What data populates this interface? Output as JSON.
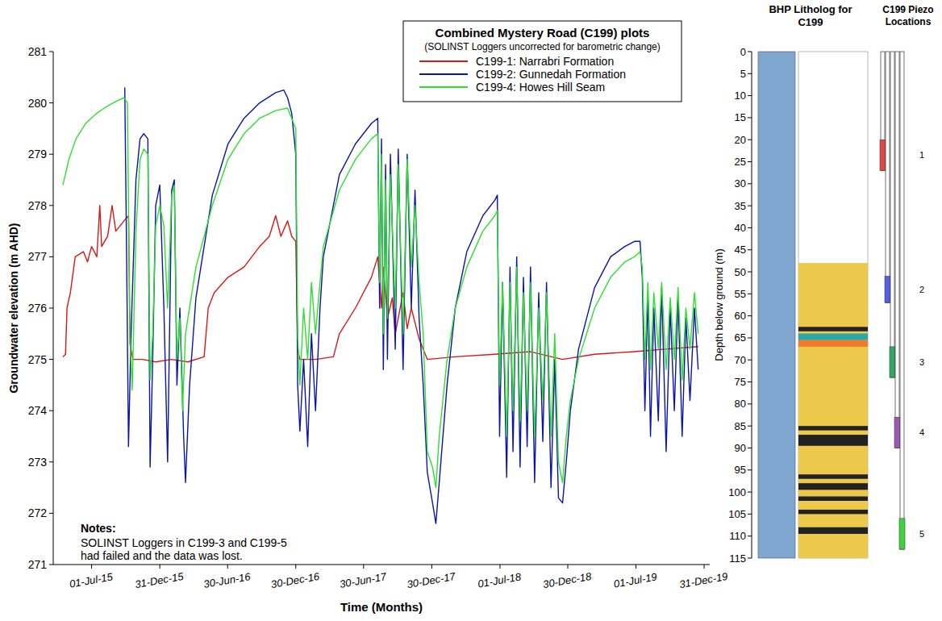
{
  "chart_data": [
    {
      "type": "line",
      "title": "Combined Mystery Road (C199) plots",
      "subtitle": "(SOLINST Loggers uncorrected for barometric change)",
      "x_label": "Time (Months)",
      "y_label": "Groundwater elevation (m AHD)",
      "notes": {
        "heading": "Notes:",
        "lines": [
          "SOLINST Loggers in C199-3 and C199-5",
          "had failed and the data was lost."
        ]
      },
      "xlim": [
        "2015-03-20",
        "2020-01-15"
      ],
      "xticks": [
        {
          "value": "2015-07-01",
          "label": "01-Jul-15"
        },
        {
          "value": "2015-12-31",
          "label": "31-Dec-15"
        },
        {
          "value": "2016-06-30",
          "label": "30-Jun-16"
        },
        {
          "value": "2016-12-30",
          "label": "30-Dec-16"
        },
        {
          "value": "2017-06-30",
          "label": "30-Jun-17"
        },
        {
          "value": "2017-12-30",
          "label": "30-Dec-17"
        },
        {
          "value": "2018-07-01",
          "label": "01-Jul-18"
        },
        {
          "value": "2018-12-30",
          "label": "30-Dec-18"
        },
        {
          "value": "2019-07-01",
          "label": "01-Jul-19"
        },
        {
          "value": "2019-12-31",
          "label": "31-Dec-19"
        }
      ],
      "ylim": [
        271,
        281
      ],
      "yticks": [
        271,
        272,
        273,
        274,
        275,
        276,
        277,
        278,
        279,
        280,
        281
      ],
      "grid": false,
      "legend": "top-right",
      "series": [
        {
          "name": "C199-1: Narrabri Formation",
          "color": "#d81818",
          "x": [
            "2015-04-15",
            "2015-04-22",
            "2015-04-26",
            "2015-05-05",
            "2015-05-18",
            "2015-06-09",
            "2015-06-20",
            "2015-07-01",
            "2015-07-15",
            "2015-07-23",
            "2015-07-28",
            "2015-08-13",
            "2015-08-25",
            "2015-09-04",
            "2015-09-26",
            "2015-10-08",
            "2015-10-12",
            "2015-10-20",
            "2015-11-15",
            "2015-12-20",
            "2016-02-01",
            "2016-03-15",
            "2016-04-28",
            "2016-05-09",
            "2016-05-25",
            "2016-07-01",
            "2016-08-13",
            "2016-09-24",
            "2016-10-20",
            "2016-11-06",
            "2016-11-20",
            "2016-12-08",
            "2016-12-19",
            "2016-12-30",
            "2017-01-04",
            "2017-01-10",
            "2017-02-21",
            "2017-04-10",
            "2017-04-26",
            "2017-06-08",
            "2017-07-21",
            "2017-08-07",
            "2017-08-17",
            "2017-08-22",
            "2017-09-02",
            "2017-09-15",
            "2017-09-23",
            "2017-10-14",
            "2017-10-25",
            "2017-11-05",
            "2017-11-26",
            "2017-12-18",
            "2018-03-03",
            "2018-06-17",
            "2018-09-21",
            "2018-12-16",
            "2019-03-12",
            "2019-06-27",
            "2019-09-20",
            "2019-12-15"
          ],
          "values": [
            275.05,
            275.1,
            276.0,
            276.3,
            277.0,
            277.1,
            276.9,
            277.2,
            277.0,
            278.0,
            277.2,
            277.4,
            278.0,
            277.5,
            277.7,
            277.8,
            275.3,
            275.0,
            275.0,
            274.95,
            275.0,
            274.95,
            275.05,
            276.0,
            276.3,
            276.6,
            276.8,
            277.2,
            277.4,
            277.8,
            277.4,
            277.7,
            277.4,
            277.3,
            275.2,
            275.0,
            275.0,
            275.05,
            275.5,
            276.0,
            276.6,
            277.0,
            276.0,
            276.8,
            275.8,
            276.2,
            275.5,
            276.3,
            275.6,
            276.0,
            275.4,
            275.0,
            275.05,
            275.1,
            275.15,
            275.0,
            275.1,
            275.15,
            275.2,
            275.25
          ]
        },
        {
          "name": "C199-2: Gunnedah Formation",
          "color": "#0a14a8",
          "x": [
            "2015-09-28",
            "2015-10-03",
            "2015-10-08",
            "2015-10-15",
            "2015-10-28",
            "2015-11-08",
            "2015-11-18",
            "2015-11-29",
            "2015-12-05",
            "2015-12-12",
            "2015-12-20",
            "2015-12-31",
            "2016-01-11",
            "2016-01-21",
            "2016-02-01",
            "2016-02-08",
            "2016-02-15",
            "2016-02-23",
            "2016-03-04",
            "2016-03-09",
            "2016-03-20",
            "2016-04-06",
            "2016-05-20",
            "2016-07-01",
            "2016-08-13",
            "2016-09-24",
            "2016-11-06",
            "2016-11-28",
            "2016-12-08",
            "2016-12-19",
            "2016-12-30",
            "2017-01-04",
            "2017-01-10",
            "2017-01-20",
            "2017-01-31",
            "2017-02-10",
            "2017-02-21",
            "2017-03-05",
            "2017-03-14",
            "2017-04-26",
            "2017-06-08",
            "2017-07-21",
            "2017-08-07",
            "2017-08-12",
            "2017-08-17",
            "2017-08-22",
            "2017-08-28",
            "2017-09-02",
            "2017-09-10",
            "2017-09-23",
            "2017-10-01",
            "2017-10-14",
            "2017-10-25",
            "2017-11-05",
            "2017-11-15",
            "2017-11-26",
            "2017-12-07",
            "2017-12-18",
            "2018-01-01",
            "2018-01-10",
            "2018-01-19",
            "2018-02-09",
            "2018-03-03",
            "2018-04-03",
            "2018-05-16",
            "2018-06-17",
            "2018-06-24",
            "2018-06-30",
            "2018-07-08",
            "2018-07-19",
            "2018-07-28",
            "2018-08-05",
            "2018-08-15",
            "2018-08-24",
            "2018-09-02",
            "2018-09-12",
            "2018-09-21",
            "2018-10-02",
            "2018-10-13",
            "2018-10-24",
            "2018-11-03",
            "2018-11-15",
            "2018-11-25",
            "2018-12-05",
            "2018-12-16",
            "2018-12-26",
            "2019-01-06",
            "2019-01-28",
            "2019-03-12",
            "2019-04-24",
            "2019-06-01",
            "2019-06-27",
            "2019-07-12",
            "2019-07-18",
            "2019-07-25",
            "2019-08-02",
            "2019-08-09",
            "2019-08-18",
            "2019-08-30",
            "2019-09-08",
            "2019-09-20",
            "2019-10-01",
            "2019-10-12",
            "2019-10-22",
            "2019-11-02",
            "2019-11-12",
            "2019-11-23",
            "2019-12-05",
            "2019-12-15"
          ],
          "values": [
            280.3,
            277.0,
            273.3,
            275.5,
            278.5,
            279.3,
            279.4,
            279.3,
            272.9,
            275.0,
            278.0,
            278.4,
            276.0,
            273.0,
            278.3,
            278.5,
            274.5,
            276.0,
            273.5,
            272.6,
            274.5,
            276.2,
            278.2,
            279.2,
            279.7,
            280.0,
            280.2,
            280.25,
            280.1,
            279.8,
            279.0,
            274.5,
            273.6,
            275.0,
            273.3,
            275.5,
            274.0,
            276.0,
            277.0,
            278.6,
            279.2,
            279.6,
            279.7,
            276.0,
            279.3,
            274.8,
            278.8,
            275.0,
            279.0,
            275.2,
            279.1,
            274.8,
            279.0,
            276.0,
            278.3,
            275.8,
            274.5,
            272.8,
            272.2,
            271.8,
            272.6,
            274.5,
            276.0,
            277.1,
            277.8,
            278.1,
            278.2,
            273.5,
            276.5,
            272.7,
            276.8,
            273.2,
            277.0,
            272.9,
            276.6,
            273.3,
            276.8,
            272.6,
            276.3,
            273.4,
            276.5,
            272.5,
            275.0,
            272.3,
            272.2,
            273.0,
            274.0,
            275.2,
            276.4,
            277.0,
            277.2,
            277.3,
            277.3,
            276.6,
            274.0,
            276.3,
            273.5,
            276.0,
            273.8,
            276.4,
            273.2,
            276.0,
            274.0,
            276.2,
            273.5,
            275.8,
            274.2,
            276.0,
            274.8
          ]
        },
        {
          "name": "C199-4: Howes Hill Seam",
          "color": "#2ee02e",
          "x": [
            "2015-04-15",
            "2015-05-01",
            "2015-05-20",
            "2015-06-15",
            "2015-07-15",
            "2015-08-15",
            "2015-09-10",
            "2015-09-26",
            "2015-10-05",
            "2015-10-12",
            "2015-10-18",
            "2015-10-28",
            "2015-11-08",
            "2015-11-18",
            "2015-11-29",
            "2015-12-05",
            "2015-12-12",
            "2015-12-20",
            "2015-12-31",
            "2016-01-11",
            "2016-01-21",
            "2016-02-01",
            "2016-02-08",
            "2016-02-15",
            "2016-02-23",
            "2016-03-01",
            "2016-03-09",
            "2016-04-06",
            "2016-05-20",
            "2016-07-01",
            "2016-08-13",
            "2016-09-24",
            "2016-11-06",
            "2016-12-08",
            "2016-12-19",
            "2016-12-30",
            "2017-01-04",
            "2017-01-10",
            "2017-01-20",
            "2017-01-31",
            "2017-02-10",
            "2017-02-21",
            "2017-03-05",
            "2017-03-14",
            "2017-04-26",
            "2017-06-08",
            "2017-07-21",
            "2017-08-07",
            "2017-08-12",
            "2017-08-17",
            "2017-08-22",
            "2017-08-28",
            "2017-09-02",
            "2017-09-10",
            "2017-09-23",
            "2017-10-01",
            "2017-10-14",
            "2017-10-25",
            "2017-11-05",
            "2017-11-15",
            "2017-11-26",
            "2017-12-07",
            "2017-12-18",
            "2018-01-01",
            "2018-01-10",
            "2018-01-19",
            "2018-02-09",
            "2018-03-03",
            "2018-04-03",
            "2018-05-16",
            "2018-06-17",
            "2018-06-24",
            "2018-06-30",
            "2018-07-08",
            "2018-07-19",
            "2018-07-28",
            "2018-08-05",
            "2018-08-15",
            "2018-08-24",
            "2018-09-02",
            "2018-09-12",
            "2018-09-21",
            "2018-10-02",
            "2018-10-13",
            "2018-10-24",
            "2018-11-03",
            "2018-11-15",
            "2018-11-25",
            "2018-12-05",
            "2018-12-16",
            "2018-12-26",
            "2019-01-06",
            "2019-01-28",
            "2019-03-12",
            "2019-04-24",
            "2019-06-01",
            "2019-06-27",
            "2019-07-12",
            "2019-07-18",
            "2019-07-25",
            "2019-08-02",
            "2019-08-09",
            "2019-08-18",
            "2019-08-30",
            "2019-09-08",
            "2019-09-20",
            "2019-10-01",
            "2019-10-12",
            "2019-10-22",
            "2019-11-02",
            "2019-11-12",
            "2019-11-23",
            "2019-12-05",
            "2019-12-15"
          ],
          "values": [
            278.4,
            278.9,
            279.3,
            279.6,
            279.8,
            279.95,
            280.05,
            280.1,
            280.0,
            275.5,
            274.4,
            277.5,
            278.9,
            279.1,
            279.0,
            274.6,
            275.5,
            277.6,
            278.0,
            277.6,
            276.0,
            278.2,
            278.4,
            275.0,
            275.8,
            274.0,
            275.5,
            276.8,
            278.0,
            278.9,
            279.4,
            279.7,
            279.85,
            279.9,
            279.7,
            279.5,
            275.5,
            274.5,
            276.0,
            275.0,
            276.5,
            275.5,
            276.5,
            277.2,
            278.3,
            278.9,
            279.3,
            279.4,
            276.5,
            279.0,
            275.5,
            278.5,
            275.8,
            278.6,
            276.0,
            278.8,
            275.5,
            278.9,
            276.8,
            278.0,
            276.5,
            275.5,
            273.2,
            272.9,
            272.5,
            273.5,
            275.0,
            276.0,
            276.8,
            277.5,
            277.8,
            277.9,
            274.5,
            276.5,
            273.5,
            276.5,
            274.0,
            276.8,
            273.8,
            276.3,
            274.0,
            276.5,
            273.5,
            276.0,
            274.2,
            276.3,
            273.5,
            275.5,
            273.0,
            272.6,
            273.5,
            274.2,
            275.0,
            276.0,
            276.6,
            276.9,
            277.0,
            277.1,
            276.8,
            275.0,
            276.5,
            274.8,
            276.3,
            275.2,
            276.5,
            274.8,
            276.2,
            275.0,
            276.4,
            274.6,
            276.0,
            275.2,
            276.3,
            275.5
          ]
        }
      ]
    },
    {
      "type": "litholog",
      "title": "BHP Litholog for C199",
      "piezo_title": "C199 Piezo Locations",
      "y_label": "Depth below ground (m)",
      "ylim": [
        0,
        115
      ],
      "yticks": [
        0,
        5,
        10,
        15,
        20,
        25,
        30,
        35,
        40,
        45,
        50,
        55,
        60,
        65,
        70,
        75,
        80,
        85,
        90,
        95,
        100,
        105,
        110,
        115
      ],
      "lithology": {
        "top": [
          48,
          62.5,
          64,
          65.5,
          85,
          87,
          96,
          98,
          101,
          104,
          108
        ],
        "bottom": [
          115,
          63.5,
          65.5,
          67,
          86,
          89.5,
          97,
          99.5,
          102,
          105,
          109.5
        ],
        "colors": [
          "#ecc94a",
          "#222222",
          "#2aa8a8",
          "#f07a30",
          "#222222",
          "#222222",
          "#222222",
          "#222222",
          "#222222",
          "#222222",
          "#222222"
        ]
      },
      "piezometers": {
        "labels": [
          "1",
          "2",
          "3",
          "4",
          "5"
        ],
        "top": [
          20,
          51,
          67,
          83,
          106
        ],
        "bottom": [
          27,
          57,
          74,
          90,
          113
        ],
        "colors": [
          "#e04848",
          "#5060e0",
          "#30a860",
          "#9a5ab0",
          "#40d040"
        ]
      }
    }
  ]
}
